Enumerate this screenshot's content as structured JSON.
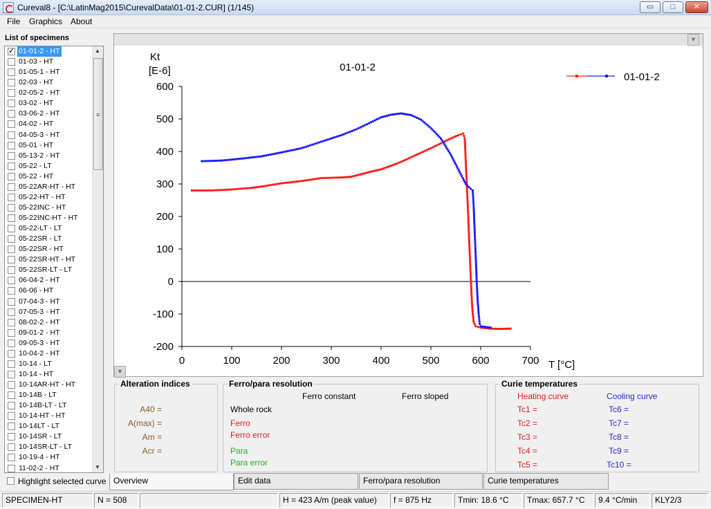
{
  "window": {
    "title": "Cureval8 - [C:\\LatinMag2015\\CurevalData\\01-01-2.CUR]  (1/145)",
    "buttons": {
      "minimize": "▭",
      "maximize": "□",
      "close": "✕"
    }
  },
  "menu": {
    "items": [
      "File",
      "Graphics",
      "About"
    ]
  },
  "sidebar": {
    "title": "List of specimens",
    "specimens": [
      {
        "label": "01-01-2 - HT",
        "checked": true,
        "selected": true
      },
      {
        "label": "01-03 - HT"
      },
      {
        "label": "01-05-1 - HT"
      },
      {
        "label": "02-03 - HT"
      },
      {
        "label": "02-05-2 - HT"
      },
      {
        "label": "03-02 - HT"
      },
      {
        "label": "03-06-2 - HT"
      },
      {
        "label": "04-02 - HT"
      },
      {
        "label": "04-05-3 - HT"
      },
      {
        "label": "05-01 - HT"
      },
      {
        "label": "05-13-2 - HT"
      },
      {
        "label": "05-22 - LT"
      },
      {
        "label": "05-22 - HT"
      },
      {
        "label": "05-22AR-HT - HT"
      },
      {
        "label": "05-22-HT - HT"
      },
      {
        "label": "05-22INC - HT"
      },
      {
        "label": "05-22INC-HT - HT"
      },
      {
        "label": "05-22-LT - LT"
      },
      {
        "label": "05-22SR - LT"
      },
      {
        "label": "05-22SR - HT"
      },
      {
        "label": "05-22SR-HT - HT"
      },
      {
        "label": "05-22SR-LT - LT"
      },
      {
        "label": "06-04-2 - HT"
      },
      {
        "label": "06-06 - HT"
      },
      {
        "label": "07-04-3 - HT"
      },
      {
        "label": "07-05-3 - HT"
      },
      {
        "label": "08-02-2 - HT"
      },
      {
        "label": "09-01-2 - HT"
      },
      {
        "label": "09-05-3 - HT"
      },
      {
        "label": "10-04-2 - HT"
      },
      {
        "label": "10-14 - LT"
      },
      {
        "label": "10-14 - HT"
      },
      {
        "label": "10-14AR-HT - HT"
      },
      {
        "label": "10-14B - LT"
      },
      {
        "label": "10-14B-LT - LT"
      },
      {
        "label": "10-14-HT - HT"
      },
      {
        "label": "10-14LT - LT"
      },
      {
        "label": "10-14SR - LT"
      },
      {
        "label": "10-14SR-LT - LT"
      },
      {
        "label": "10-19-4 - HT"
      },
      {
        "label": "11-02-2 - HT"
      }
    ],
    "highlight_label": "Highlight selected curve"
  },
  "chart_data": {
    "type": "line",
    "title": "01-01-2",
    "ylabel_line1": "Kt",
    "ylabel_line2": "[E-6]",
    "xlabel": "T [°C]",
    "xlim": [
      0,
      700
    ],
    "ylim": [
      -200,
      600
    ],
    "xticks": [
      0,
      100,
      200,
      300,
      400,
      500,
      600,
      700
    ],
    "yticks": [
      -200,
      -100,
      0,
      100,
      200,
      300,
      400,
      500,
      600
    ],
    "zero_line": true,
    "legend": {
      "placement": "top-right"
    },
    "series": [
      {
        "name": "01-01-2",
        "role": "heating",
        "color": "#ff1a1a",
        "points": [
          [
            20,
            280
          ],
          [
            60,
            280
          ],
          [
            100,
            283
          ],
          [
            140,
            288
          ],
          [
            160,
            292
          ],
          [
            200,
            302
          ],
          [
            240,
            309
          ],
          [
            280,
            318
          ],
          [
            320,
            320
          ],
          [
            340,
            322
          ],
          [
            360,
            330
          ],
          [
            380,
            338
          ],
          [
            400,
            345
          ],
          [
            420,
            356
          ],
          [
            440,
            368
          ],
          [
            460,
            382
          ],
          [
            480,
            396
          ],
          [
            500,
            410
          ],
          [
            520,
            425
          ],
          [
            540,
            440
          ],
          [
            555,
            450
          ],
          [
            565,
            455
          ],
          [
            568,
            440
          ],
          [
            570,
            370
          ],
          [
            573,
            270
          ],
          [
            575,
            200
          ],
          [
            577,
            120
          ],
          [
            579,
            50
          ],
          [
            581,
            -20
          ],
          [
            583,
            -80
          ],
          [
            586,
            -125
          ],
          [
            590,
            -138
          ],
          [
            600,
            -142
          ],
          [
            620,
            -145
          ],
          [
            640,
            -146
          ],
          [
            660,
            -145
          ]
        ]
      },
      {
        "name": "01-01-2",
        "role": "cooling",
        "color": "#1a1aff",
        "points": [
          [
            40,
            370
          ],
          [
            80,
            372
          ],
          [
            120,
            378
          ],
          [
            160,
            385
          ],
          [
            200,
            397
          ],
          [
            240,
            410
          ],
          [
            280,
            430
          ],
          [
            320,
            450
          ],
          [
            350,
            468
          ],
          [
            380,
            490
          ],
          [
            400,
            505
          ],
          [
            420,
            513
          ],
          [
            440,
            517
          ],
          [
            460,
            512
          ],
          [
            480,
            498
          ],
          [
            500,
            472
          ],
          [
            520,
            440
          ],
          [
            540,
            390
          ],
          [
            560,
            330
          ],
          [
            570,
            300
          ],
          [
            580,
            285
          ],
          [
            584,
            280
          ],
          [
            586,
            230
          ],
          [
            588,
            150
          ],
          [
            590,
            80
          ],
          [
            592,
            0
          ],
          [
            594,
            -60
          ],
          [
            596,
            -100
          ],
          [
            598,
            -130
          ],
          [
            600,
            -138
          ],
          [
            620,
            -142
          ]
        ]
      }
    ]
  },
  "alteration": {
    "title": "Alteration indices",
    "labels": [
      "A40 =",
      "A(max) =",
      "Am =",
      "Acr ="
    ]
  },
  "ferropara": {
    "title": "Ferro/para resolution",
    "col1": "Ferro constant",
    "col2": "Ferro sloped",
    "whole_rock": "Whole rock",
    "ferro": "Ferro",
    "ferro_error": "Ferro error",
    "para": "Para",
    "para_error": "Para error"
  },
  "curie": {
    "title": "Curie temperatures",
    "heating_title": "Heating curve",
    "cooling_title": "Cooling curve",
    "heating": [
      "Tc1 =",
      "Tc2 =",
      "Tc3 =",
      "Tc4 =",
      "Tc5 ="
    ],
    "cooling": [
      "Tc6  =",
      "Tc7  =",
      "Tc8  =",
      "Tc9  =",
      "Tc10 ="
    ]
  },
  "tabs": [
    {
      "label": "Overview",
      "active": true
    },
    {
      "label": "Edit data"
    },
    {
      "label": "Ferro/para resolution"
    },
    {
      "label": "Curie temperatures"
    }
  ],
  "status": {
    "specimen": "SPECIMEN-HT",
    "n": "N = 508",
    "blank": "",
    "field": "H = 423 A/m (peak value)",
    "freq": "f = 875 Hz",
    "tmin": "Tmin: 18.6 °C",
    "tmax": "Tmax: 657.7 °C",
    "rate": "9.4 °C/min",
    "instrument": "KLY2/3"
  },
  "colors": {
    "heating": "#e02020",
    "cooling": "#2a2ad0",
    "para": "#20b020",
    "alteration": "#8a5a2b"
  }
}
